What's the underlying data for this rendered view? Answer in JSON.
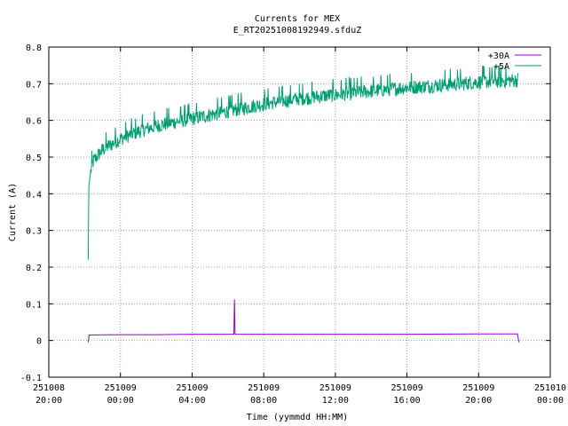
{
  "chart_data": {
    "type": "line",
    "title": "Currents for MEX",
    "subtitle": "E_RT20251008192949.sfduZ",
    "xlabel": "Time (yymmdd HH:MM)",
    "ylabel": "Current (A)",
    "ylim": [
      -0.1,
      0.8
    ],
    "xlim": [
      "2025-10-08 20:00",
      "2025-10-10 00:00"
    ],
    "grid": true,
    "legend_position": "top-right",
    "y_ticks": [
      "-0.1",
      "0",
      "0.1",
      "0.2",
      "0.3",
      "0.4",
      "0.5",
      "0.6",
      "0.7",
      "0.8"
    ],
    "x_ticks": [
      {
        "date": "251008",
        "time": "20:00"
      },
      {
        "date": "251009",
        "time": "00:00"
      },
      {
        "date": "251009",
        "time": "04:00"
      },
      {
        "date": "251009",
        "time": "08:00"
      },
      {
        "date": "251009",
        "time": "12:00"
      },
      {
        "date": "251009",
        "time": "16:00"
      },
      {
        "date": "251009",
        "time": "20:00"
      },
      {
        "date": "251010",
        "time": "00:00"
      }
    ],
    "series": [
      {
        "name": "+30A",
        "color": "#9400d3",
        "points": [
          [
            "2025-10-08 22:12",
            -0.005
          ],
          [
            "2025-10-08 22:15",
            0.015
          ],
          [
            "2025-10-09 00:00",
            0.016
          ],
          [
            "2025-10-09 02:00",
            0.016
          ],
          [
            "2025-10-09 04:00",
            0.017
          ],
          [
            "2025-10-09 06:00",
            0.017
          ],
          [
            "2025-10-09 06:20",
            0.017
          ],
          [
            "2025-10-09 06:22",
            0.112
          ],
          [
            "2025-10-09 06:24",
            0.017
          ],
          [
            "2025-10-09 08:00",
            0.017
          ],
          [
            "2025-10-09 12:00",
            0.017
          ],
          [
            "2025-10-09 16:00",
            0.017
          ],
          [
            "2025-10-09 20:00",
            0.018
          ],
          [
            "2025-10-09 22:10",
            0.018
          ],
          [
            "2025-10-09 22:15",
            -0.005
          ]
        ]
      },
      {
        "name": "+5A",
        "color": "#009e73",
        "points": [
          [
            "2025-10-08 22:12",
            0.22
          ],
          [
            "2025-10-08 22:14",
            0.42
          ],
          [
            "2025-10-08 22:20",
            0.46
          ],
          [
            "2025-10-08 22:30",
            0.49
          ],
          [
            "2025-10-08 23:00",
            0.52
          ],
          [
            "2025-10-09 00:00",
            0.55
          ],
          [
            "2025-10-09 01:00",
            0.57
          ],
          [
            "2025-10-09 02:00",
            0.585
          ],
          [
            "2025-10-09 03:00",
            0.595
          ],
          [
            "2025-10-09 04:00",
            0.605
          ],
          [
            "2025-10-09 05:00",
            0.615
          ],
          [
            "2025-10-09 06:00",
            0.625
          ],
          [
            "2025-10-09 07:00",
            0.635
          ],
          [
            "2025-10-09 08:00",
            0.645
          ],
          [
            "2025-10-09 09:00",
            0.652
          ],
          [
            "2025-10-09 10:00",
            0.66
          ],
          [
            "2025-10-09 11:00",
            0.665
          ],
          [
            "2025-10-09 12:00",
            0.67
          ],
          [
            "2025-10-09 13:00",
            0.675
          ],
          [
            "2025-10-09 14:00",
            0.68
          ],
          [
            "2025-10-09 15:00",
            0.685
          ],
          [
            "2025-10-09 16:00",
            0.69
          ],
          [
            "2025-10-09 17:00",
            0.693
          ],
          [
            "2025-10-09 18:00",
            0.697
          ],
          [
            "2025-10-09 19:00",
            0.7
          ],
          [
            "2025-10-09 20:00",
            0.705
          ],
          [
            "2025-10-09 21:00",
            0.707
          ],
          [
            "2025-10-09 22:14",
            0.71
          ]
        ],
        "noise_amplitude": 0.02
      }
    ]
  }
}
